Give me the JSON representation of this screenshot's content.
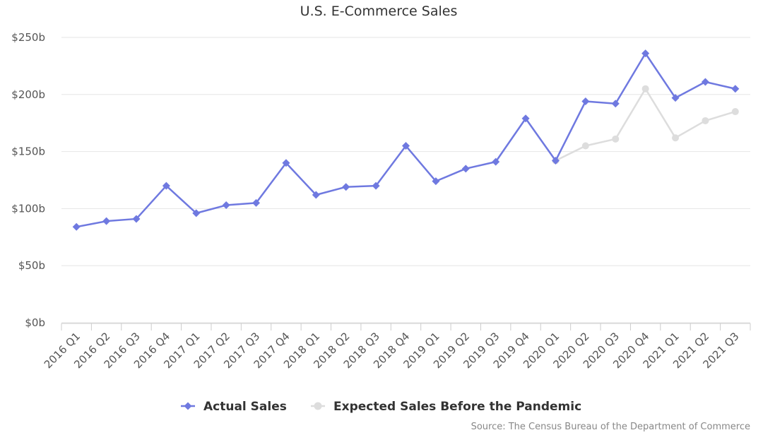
{
  "chart_data": {
    "type": "line",
    "title": "U.S. E-Commerce Sales",
    "xlabel": "",
    "ylabel": "",
    "categories": [
      "2016 Q1",
      "2016 Q2",
      "2016 Q3",
      "2016 Q4",
      "2017 Q1",
      "2017 Q2",
      "2017 Q3",
      "2017 Q4",
      "2018 Q1",
      "2018 Q2",
      "2018 Q3",
      "2018 Q4",
      "2019 Q1",
      "2019 Q2",
      "2019 Q3",
      "2019 Q4",
      "2020 Q1",
      "2020 Q2",
      "2020 Q3",
      "2020 Q4",
      "2021 Q1",
      "2021 Q2",
      "2021 Q3"
    ],
    "y_ticks": [
      "$0b",
      "$50b",
      "$100b",
      "$150b",
      "$200b",
      "$250b"
    ],
    "ylim": [
      0,
      250
    ],
    "grid": true,
    "legend_position": "bottom",
    "series": [
      {
        "name": "Actual Sales",
        "color": "#6f79e0",
        "marker": "diamond",
        "values": [
          84,
          89,
          91,
          120,
          96,
          103,
          105,
          140,
          112,
          119,
          120,
          155,
          124,
          135,
          141,
          179,
          142,
          194,
          192,
          236,
          197,
          211,
          205
        ]
      },
      {
        "name": "Expected Sales Before the Pandemic",
        "color": "#dddddd",
        "marker": "circle",
        "values": [
          null,
          null,
          null,
          null,
          null,
          null,
          null,
          null,
          null,
          null,
          null,
          null,
          null,
          null,
          null,
          null,
          142,
          155,
          161,
          205,
          162,
          177,
          185
        ]
      }
    ],
    "source": "Source: The Census Bureau of the Department of Commerce"
  }
}
